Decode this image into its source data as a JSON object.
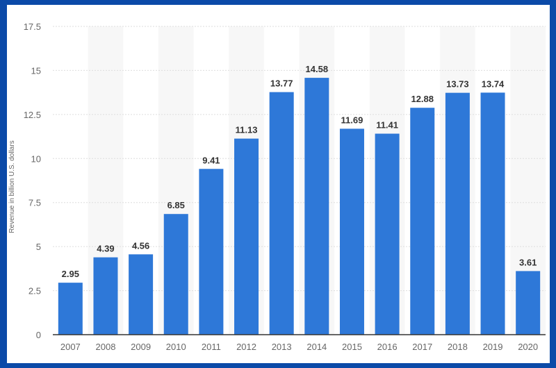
{
  "chart_data": {
    "type": "bar",
    "title": "",
    "xlabel": "",
    "ylabel": "Revenue in billion U.S. dollars",
    "categories": [
      "2007",
      "2008",
      "2009",
      "2010",
      "2011",
      "2012",
      "2013",
      "2014",
      "2015",
      "2016",
      "2017",
      "2018",
      "2019",
      "2020"
    ],
    "values": [
      2.95,
      4.39,
      4.56,
      6.85,
      9.41,
      11.13,
      13.77,
      14.58,
      11.69,
      11.41,
      12.88,
      13.73,
      13.74,
      3.61
    ],
    "value_labels": [
      "2.95",
      "4.39",
      "4.56",
      "6.85",
      "9.41",
      "11.13",
      "13.77",
      "14.58",
      "11.69",
      "11.41",
      "12.88",
      "13.73",
      "13.74",
      "3.61"
    ],
    "ylim": [
      0,
      17.5
    ],
    "yticks": [
      0,
      2.5,
      5,
      7.5,
      10,
      12.5,
      15,
      17.5
    ],
    "ytick_labels": [
      "0",
      "2.5",
      "5",
      "7.5",
      "10",
      "12.5",
      "15",
      "17.5"
    ],
    "grid": true,
    "bar_color": "#2e78d8",
    "frame_color": "#0b4aa8"
  }
}
